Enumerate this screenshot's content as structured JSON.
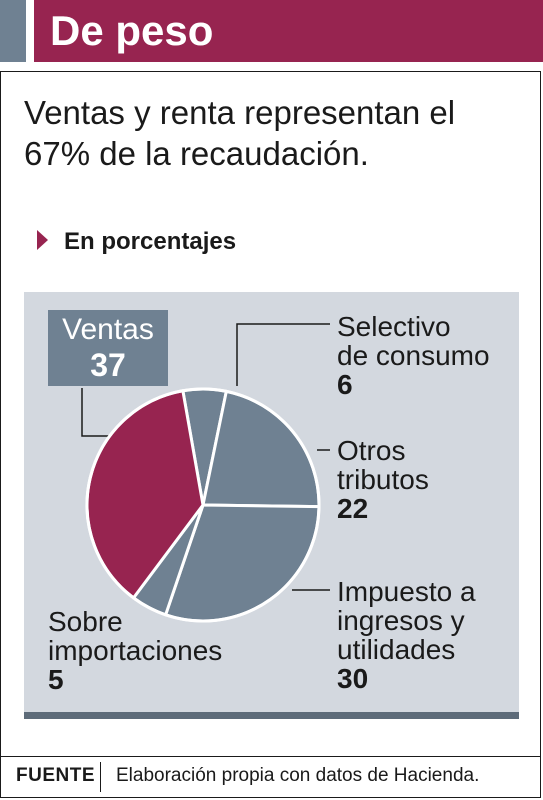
{
  "header": {
    "title": "De peso"
  },
  "headline": "Ventas y renta representan el 67% de la recaudación.",
  "subtitle": "En porcentajes",
  "colors": {
    "brand": "#972450",
    "slate": "#6f8192",
    "panel": "#d3d8df",
    "slice_highlight": "#972450",
    "slice_default": "#6f8192"
  },
  "chart_data": {
    "type": "pie",
    "title": "En porcentajes",
    "unit": "%",
    "slices": [
      {
        "name": "Selectivo de consumo",
        "value": 6
      },
      {
        "name": "Otros tributos",
        "value": 22
      },
      {
        "name": "Impuesto a ingresos y utilidades",
        "value": 30
      },
      {
        "name": "Sobre importaciones",
        "value": 5
      },
      {
        "name": "Ventas",
        "value": 37,
        "highlight": true
      }
    ]
  },
  "labels": {
    "ventas": {
      "name": "Ventas",
      "value": "37"
    },
    "selectivo": {
      "name": "Selectivo\nde consumo",
      "value": "6"
    },
    "otros": {
      "name": "Otros\ntributos",
      "value": "22"
    },
    "impuesto": {
      "name": "Impuesto a\ningresos y\nutilidades",
      "value": "30"
    },
    "importaciones": {
      "name": "Sobre\nimportaciones",
      "value": "5"
    }
  },
  "footer": {
    "source_label": "FUENTE",
    "source_text": "Elaboración propia con datos de Hacienda."
  }
}
